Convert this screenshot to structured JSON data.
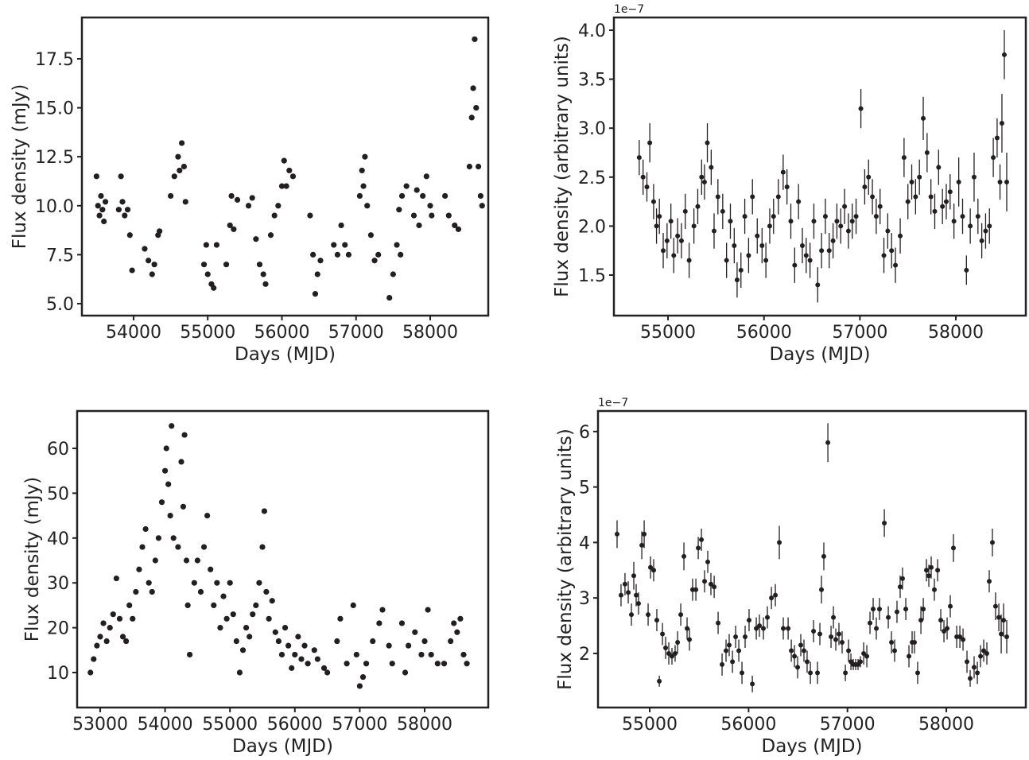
{
  "chart_data": [
    {
      "type": "scatter",
      "xlabel": "Days (MJD)",
      "ylabel": "Flux density (mJy)",
      "color": "#231f20",
      "xlim": [
        53303,
        58783
      ],
      "ylim": [
        4.39,
        19.61
      ],
      "xticks": [
        54000,
        55000,
        56000,
        57000,
        58000
      ],
      "yticks": [
        {
          "value": 5,
          "label": "5.0"
        },
        7.5,
        {
          "value": 10,
          "label": "10.0"
        },
        12.5,
        {
          "value": 15,
          "label": "15.0"
        },
        17.5
      ],
      "x": [
        53500,
        53520,
        53540,
        53560,
        53580,
        53600,
        53620,
        53800,
        53830,
        53850,
        53880,
        53920,
        53950,
        53980,
        54150,
        54200,
        54250,
        54280,
        54330,
        54350,
        54500,
        54550,
        54600,
        54620,
        54650,
        54680,
        54700,
        54950,
        54980,
        55000,
        55050,
        55080,
        55120,
        55250,
        55300,
        55320,
        55350,
        55400,
        55550,
        55600,
        55650,
        55700,
        55750,
        55780,
        55850,
        55900,
        55950,
        56000,
        56030,
        56060,
        56100,
        56150,
        56380,
        56420,
        56450,
        56480,
        56520,
        56700,
        56750,
        56800,
        56850,
        56900,
        57050,
        57080,
        57100,
        57120,
        57150,
        57200,
        57250,
        57300,
        57450,
        57500,
        57550,
        57580,
        57600,
        57620,
        57680,
        57780,
        57820,
        57850,
        57900,
        57950,
        58000,
        58020,
        58200,
        58250,
        58330,
        58380,
        58530,
        58560,
        58580,
        58600,
        58620,
        58650,
        58680,
        58700
      ],
      "values": [
        11.5,
        10.0,
        9.5,
        10.5,
        9.8,
        9.2,
        10.2,
        9.8,
        11.5,
        10.2,
        9.5,
        9.8,
        8.5,
        6.7,
        7.8,
        7.2,
        6.5,
        7.0,
        8.5,
        8.7,
        10.5,
        11.5,
        12.5,
        11.8,
        13.2,
        12.0,
        10.2,
        7.0,
        8.0,
        6.5,
        6.0,
        5.8,
        8.0,
        7.0,
        9.0,
        10.5,
        8.8,
        10.3,
        10.0,
        10.4,
        8.3,
        7.0,
        6.5,
        6.0,
        8.5,
        9.5,
        10.0,
        11.0,
        12.3,
        11.0,
        11.8,
        11.5,
        9.5,
        7.5,
        5.5,
        6.5,
        7.2,
        8.0,
        7.5,
        9.0,
        8.0,
        7.5,
        10.5,
        11.8,
        11.0,
        12.5,
        10.0,
        8.5,
        7.2,
        7.5,
        5.3,
        6.5,
        8.0,
        9.8,
        7.5,
        10.5,
        11.0,
        9.5,
        10.8,
        9.0,
        10.5,
        11.5,
        10.0,
        9.5,
        10.5,
        9.5,
        9.0,
        8.8,
        12.0,
        14.5,
        16.0,
        18.5,
        15.0,
        12.0,
        10.5,
        10.0
      ]
    },
    {
      "type": "errorbar",
      "xlabel": "Days (MJD)",
      "ylabel": "Flux density (arbitrary units)",
      "offset_label": "1e−7",
      "color": "#231f20",
      "xlim": [
        54436,
        58729
      ],
      "ylim": [
        1.086,
        4.13
      ],
      "xticks": [
        55000,
        56000,
        57000,
        58000
      ],
      "yticks": [
        1.5,
        {
          "value": 2,
          "label": "2.0"
        },
        2.5,
        {
          "value": 3,
          "label": "3.0"
        },
        3.5,
        {
          "value": 4,
          "label": "4.0"
        }
      ],
      "x": [
        54700,
        54740,
        54780,
        54810,
        54850,
        54880,
        54910,
        54950,
        54990,
        55030,
        55060,
        55100,
        55140,
        55180,
        55220,
        55270,
        55310,
        55350,
        55380,
        55410,
        55450,
        55480,
        55520,
        55570,
        55610,
        55650,
        55690,
        55720,
        55760,
        55800,
        55840,
        55880,
        55930,
        55980,
        56020,
        56060,
        56100,
        56150,
        56200,
        56240,
        56280,
        56320,
        56360,
        56400,
        56440,
        56480,
        56520,
        56560,
        56600,
        56640,
        56680,
        56720,
        56760,
        56800,
        56840,
        56880,
        56920,
        56960,
        57010,
        57050,
        57090,
        57130,
        57170,
        57210,
        57250,
        57290,
        57330,
        57370,
        57420,
        57460,
        57500,
        57540,
        57580,
        57620,
        57660,
        57700,
        57740,
        57780,
        57820,
        57860,
        57900,
        57940,
        57980,
        58030,
        58070,
        58110,
        58150,
        58190,
        58230,
        58270,
        58310,
        58350,
        58390,
        58430,
        58460,
        58480,
        58505,
        58530
      ],
      "values": [
        2.7,
        2.5,
        2.4,
        2.85,
        2.25,
        2.0,
        2.1,
        1.75,
        1.85,
        2.05,
        1.7,
        1.9,
        1.85,
        2.15,
        1.65,
        2.0,
        2.2,
        2.5,
        2.45,
        2.85,
        2.6,
        1.95,
        2.3,
        2.15,
        1.65,
        2.05,
        1.8,
        1.45,
        1.55,
        2.1,
        1.7,
        2.3,
        1.9,
        1.8,
        1.65,
        2.0,
        2.1,
        2.3,
        2.55,
        2.4,
        2.05,
        1.6,
        2.25,
        1.8,
        1.7,
        1.65,
        2.05,
        1.4,
        1.75,
        2.1,
        1.75,
        1.85,
        2.05,
        2.0,
        2.2,
        1.95,
        2.05,
        2.1,
        3.2,
        2.4,
        2.5,
        2.3,
        2.1,
        2.2,
        1.7,
        1.95,
        1.75,
        1.6,
        1.9,
        2.7,
        2.25,
        2.45,
        2.3,
        2.5,
        3.1,
        2.75,
        2.3,
        2.15,
        2.6,
        2.2,
        2.25,
        2.35,
        2.05,
        2.45,
        2.1,
        1.55,
        2.0,
        2.5,
        2.1,
        1.85,
        1.95,
        2.0,
        2.7,
        2.9,
        2.45,
        3.05,
        3.75,
        2.45
      ],
      "errors": [
        0.18,
        0.18,
        0.15,
        0.2,
        0.18,
        0.18,
        0.18,
        0.18,
        0.18,
        0.18,
        0.18,
        0.18,
        0.18,
        0.18,
        0.18,
        0.18,
        0.18,
        0.18,
        0.18,
        0.2,
        0.18,
        0.18,
        0.18,
        0.18,
        0.18,
        0.18,
        0.18,
        0.18,
        0.18,
        0.18,
        0.18,
        0.18,
        0.18,
        0.18,
        0.18,
        0.18,
        0.18,
        0.18,
        0.18,
        0.18,
        0.18,
        0.18,
        0.18,
        0.18,
        0.18,
        0.18,
        0.18,
        0.18,
        0.18,
        0.18,
        0.18,
        0.18,
        0.18,
        0.18,
        0.18,
        0.18,
        0.18,
        0.18,
        0.2,
        0.18,
        0.18,
        0.18,
        0.18,
        0.18,
        0.18,
        0.18,
        0.18,
        0.18,
        0.18,
        0.2,
        0.18,
        0.18,
        0.18,
        0.18,
        0.22,
        0.2,
        0.18,
        0.18,
        0.18,
        0.18,
        0.18,
        0.18,
        0.18,
        0.25,
        0.18,
        0.15,
        0.18,
        0.25,
        0.18,
        0.18,
        0.18,
        0.18,
        0.2,
        0.2,
        0.18,
        0.3,
        0.25,
        0.3
      ]
    },
    {
      "type": "scatter",
      "xlabel": "Days (MJD)",
      "ylabel": "Flux density (mJy)",
      "color": "#231f20",
      "xlim": [
        52645,
        58980
      ],
      "ylim": [
        2.2,
        68.33
      ],
      "xticks": [
        53000,
        54000,
        55000,
        56000,
        57000,
        58000
      ],
      "yticks": [
        10,
        20,
        30,
        40,
        50,
        60
      ],
      "x": [
        52850,
        52900,
        52950,
        53000,
        53050,
        53100,
        53150,
        53200,
        53250,
        53300,
        53350,
        53400,
        53450,
        53500,
        53550,
        53600,
        53650,
        53700,
        53750,
        53800,
        53850,
        53900,
        53950,
        54000,
        54020,
        54050,
        54080,
        54100,
        54130,
        54200,
        54250,
        54280,
        54300,
        54330,
        54350,
        54380,
        54450,
        54500,
        54550,
        54600,
        54650,
        54700,
        54750,
        54800,
        54850,
        54900,
        54950,
        55000,
        55050,
        55100,
        55150,
        55200,
        55250,
        55300,
        55350,
        55400,
        55450,
        55500,
        55530,
        55560,
        55600,
        55650,
        55700,
        55750,
        55800,
        55850,
        55900,
        55950,
        56000,
        56050,
        56100,
        56150,
        56200,
        56300,
        56350,
        56450,
        56500,
        56650,
        56700,
        56800,
        56900,
        56950,
        57000,
        57050,
        57100,
        57200,
        57300,
        57350,
        57450,
        57500,
        57650,
        57700,
        57750,
        57850,
        57950,
        58000,
        58050,
        58100,
        58200,
        58300,
        58400,
        58450,
        58500,
        58550,
        58600,
        58650
      ],
      "values": [
        10,
        13,
        16,
        18,
        21,
        17,
        20,
        23,
        31,
        22,
        18,
        17,
        25,
        22,
        28,
        33,
        38,
        42,
        30,
        28,
        35,
        40,
        48,
        55,
        60,
        52,
        45,
        65,
        40,
        38,
        57,
        47,
        63,
        35,
        25,
        14,
        30,
        35,
        28,
        38,
        45,
        33,
        25,
        30,
        20,
        27,
        22,
        30,
        23,
        17,
        10,
        15,
        20,
        18,
        23,
        25,
        30,
        38,
        46,
        28,
        22,
        26,
        19,
        17,
        14,
        20,
        16,
        11,
        14,
        18,
        13,
        16,
        12,
        15,
        13,
        11,
        10,
        17,
        22,
        12,
        25,
        14,
        7,
        9,
        12,
        17,
        21,
        24,
        16,
        12,
        21,
        10,
        16,
        19,
        14,
        17,
        24,
        14,
        12,
        12,
        17,
        21,
        19,
        22,
        14,
        12
      ]
    },
    {
      "type": "errorbar",
      "xlabel": "Days (MJD)",
      "ylabel": "Flux density (arbitrary units)",
      "offset_label": "1e−7",
      "color": "#231f20",
      "xlim": [
        54477,
        58804
      ],
      "ylim": [
        1.025,
        6.37
      ],
      "xticks": [
        55000,
        56000,
        57000,
        58000
      ],
      "yticks": [
        2,
        3,
        4,
        5,
        6
      ],
      "x": [
        54670,
        54710,
        54750,
        54783,
        54815,
        54839,
        54863,
        54887,
        54920,
        54944,
        54984,
        55008,
        55040,
        55072,
        55097,
        55129,
        55161,
        55193,
        55225,
        55257,
        55282,
        55314,
        55346,
        55378,
        55402,
        55434,
        55467,
        55491,
        55523,
        55555,
        55587,
        55619,
        55652,
        55692,
        55732,
        55772,
        55804,
        55837,
        55869,
        55901,
        55933,
        55965,
        56005,
        56038,
        56078,
        56110,
        56150,
        56190,
        56231,
        56271,
        56311,
        56351,
        56400,
        56432,
        56464,
        56496,
        56528,
        56560,
        56592,
        56625,
        56657,
        56697,
        56721,
        56737,
        56761,
        56802,
        56834,
        56858,
        56882,
        56914,
        56946,
        56979,
        57011,
        57035,
        57059,
        57083,
        57107,
        57131,
        57164,
        57196,
        57228,
        57260,
        57292,
        57324,
        57373,
        57413,
        57445,
        57477,
        57501,
        57533,
        57557,
        57590,
        57622,
        57654,
        57678,
        57710,
        57743,
        57767,
        57799,
        57823,
        57847,
        57879,
        57912,
        57944,
        57976,
        58008,
        58040,
        58072,
        58105,
        58137,
        58169,
        58209,
        58241,
        58281,
        58314,
        58346,
        58378,
        58410,
        58434,
        58466,
        58498,
        58531,
        58555,
        58579,
        58611
      ],
      "values": [
        4.15,
        3.05,
        3.25,
        3.1,
        2.7,
        3.4,
        3.05,
        2.9,
        3.95,
        4.15,
        2.7,
        3.55,
        3.5,
        2.6,
        1.5,
        2.35,
        2.1,
        2.0,
        1.95,
        2.0,
        2.2,
        2.7,
        3.75,
        2.45,
        2.25,
        3.15,
        3.15,
        3.9,
        4.05,
        3.3,
        3.65,
        3.25,
        3.2,
        2.55,
        1.8,
        2.05,
        2.15,
        1.85,
        2.3,
        2.05,
        1.65,
        2.3,
        2.6,
        1.45,
        2.45,
        2.5,
        2.45,
        2.65,
        3.0,
        3.05,
        4.0,
        2.45,
        2.45,
        2.05,
        1.95,
        1.75,
        2.15,
        2.05,
        1.85,
        1.65,
        2.4,
        1.65,
        2.35,
        3.15,
        3.75,
        5.8,
        2.3,
        2.65,
        2.25,
        2.35,
        2.2,
        1.65,
        2.05,
        1.85,
        1.8,
        1.8,
        1.8,
        1.85,
        2.0,
        1.95,
        2.55,
        2.8,
        2.45,
        2.8,
        4.35,
        2.65,
        2.2,
        2.05,
        2.75,
        3.2,
        3.35,
        2.8,
        1.95,
        2.2,
        2.2,
        1.65,
        2.6,
        2.8,
        3.5,
        3.4,
        3.55,
        3.15,
        3.5,
        2.6,
        2.4,
        2.45,
        2.85,
        3.9,
        2.3,
        2.3,
        2.25,
        1.85,
        1.55,
        1.75,
        1.65,
        1.95,
        2.05,
        2.0,
        3.3,
        4.0,
        2.85,
        2.65,
        2.35,
        2.6,
        2.3
      ],
      "errors": [
        0.25,
        0.2,
        0.2,
        0.2,
        0.2,
        0.25,
        0.2,
        0.2,
        0.25,
        0.25,
        0.2,
        0.2,
        0.2,
        0.2,
        0.1,
        0.2,
        0.2,
        0.2,
        0.15,
        0.15,
        0.2,
        0.2,
        0.25,
        0.2,
        0.2,
        0.2,
        0.2,
        0.2,
        0.2,
        0.2,
        0.2,
        0.2,
        0.2,
        0.2,
        0.2,
        0.2,
        0.2,
        0.2,
        0.2,
        0.2,
        0.2,
        0.2,
        0.2,
        0.15,
        0.2,
        0.2,
        0.2,
        0.2,
        0.2,
        0.2,
        0.3,
        0.2,
        0.2,
        0.2,
        0.2,
        0.2,
        0.2,
        0.2,
        0.2,
        0.2,
        0.2,
        0.2,
        0.2,
        0.25,
        0.25,
        0.35,
        0.2,
        0.2,
        0.2,
        0.2,
        0.2,
        0.15,
        0.2,
        0.15,
        0.1,
        0.1,
        0.1,
        0.1,
        0.2,
        0.2,
        0.2,
        0.2,
        0.2,
        0.2,
        0.25,
        0.2,
        0.2,
        0.2,
        0.2,
        0.2,
        0.2,
        0.2,
        0.2,
        0.2,
        0.2,
        0.2,
        0.25,
        0.2,
        0.2,
        0.2,
        0.2,
        0.2,
        0.2,
        0.2,
        0.2,
        0.2,
        0.2,
        0.25,
        0.2,
        0.2,
        0.2,
        0.2,
        0.15,
        0.2,
        0.2,
        0.2,
        0.2,
        0.2,
        0.2,
        0.25,
        0.25,
        0.25,
        0.35,
        0.3,
        0.3
      ]
    }
  ]
}
